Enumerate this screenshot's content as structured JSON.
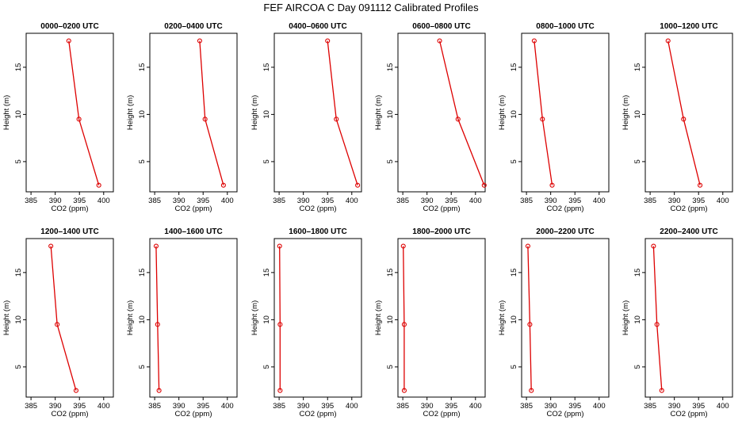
{
  "figure": {
    "title": "FEF AIRCOA C  Day 091112  Calibrated Profiles"
  },
  "chart_data": [
    {
      "type": "line",
      "title": "0000–0200 UTC",
      "xlabel": "CO2 (ppm)",
      "ylabel": "Height (m)",
      "xlim": [
        384,
        402
      ],
      "ylim": [
        1.8,
        18.6
      ],
      "x_ticks": [
        385,
        390,
        395,
        400
      ],
      "y_ticks": [
        5,
        10,
        15
      ],
      "series": [
        {
          "x": [
            392.8,
            394.9,
            399.0
          ],
          "y": [
            17.8,
            9.5,
            2.5
          ]
        }
      ]
    },
    {
      "type": "line",
      "title": "0200–0400 UTC",
      "xlabel": "CO2 (ppm)",
      "ylabel": "Height (m)",
      "xlim": [
        384,
        402
      ],
      "ylim": [
        1.8,
        18.6
      ],
      "x_ticks": [
        385,
        390,
        395,
        400
      ],
      "y_ticks": [
        5,
        10,
        15
      ],
      "series": [
        {
          "x": [
            394.3,
            395.4,
            399.2
          ],
          "y": [
            17.8,
            9.5,
            2.5
          ]
        }
      ]
    },
    {
      "type": "line",
      "title": "0400–0600 UTC",
      "xlabel": "CO2 (ppm)",
      "ylabel": "Height (m)",
      "xlim": [
        384,
        402
      ],
      "ylim": [
        1.8,
        18.6
      ],
      "x_ticks": [
        385,
        390,
        395,
        400
      ],
      "y_ticks": [
        5,
        10,
        15
      ],
      "series": [
        {
          "x": [
            395.0,
            396.8,
            401.2
          ],
          "y": [
            17.8,
            9.5,
            2.5
          ]
        }
      ]
    },
    {
      "type": "line",
      "title": "0600–0800 UTC",
      "xlabel": "CO2 (ppm)",
      "ylabel": "Height (m)",
      "xlim": [
        384,
        402
      ],
      "ylim": [
        1.8,
        18.6
      ],
      "x_ticks": [
        385,
        390,
        395,
        400
      ],
      "y_ticks": [
        5,
        10,
        15
      ],
      "series": [
        {
          "x": [
            392.6,
            396.4,
            401.8
          ],
          "y": [
            17.8,
            9.5,
            2.5
          ]
        }
      ]
    },
    {
      "type": "line",
      "title": "0800–1000 UTC",
      "xlabel": "CO2 (ppm)",
      "ylabel": "Height (m)",
      "xlim": [
        384,
        402
      ],
      "ylim": [
        1.8,
        18.6
      ],
      "x_ticks": [
        385,
        390,
        395,
        400
      ],
      "y_ticks": [
        5,
        10,
        15
      ],
      "series": [
        {
          "x": [
            386.6,
            388.3,
            390.3
          ],
          "y": [
            17.8,
            9.5,
            2.5
          ]
        }
      ]
    },
    {
      "type": "line",
      "title": "1000–1200 UTC",
      "xlabel": "CO2 (ppm)",
      "ylabel": "Height (m)",
      "xlim": [
        384,
        402
      ],
      "ylim": [
        1.8,
        18.6
      ],
      "x_ticks": [
        385,
        390,
        395,
        400
      ],
      "y_ticks": [
        5,
        10,
        15
      ],
      "series": [
        {
          "x": [
            388.7,
            391.9,
            395.3
          ],
          "y": [
            17.8,
            9.5,
            2.5
          ]
        }
      ]
    },
    {
      "type": "line",
      "title": "1200–1400 UTC",
      "xlabel": "CO2 (ppm)",
      "ylabel": "Height (m)",
      "xlim": [
        384,
        402
      ],
      "ylim": [
        1.8,
        18.6
      ],
      "x_ticks": [
        385,
        390,
        395,
        400
      ],
      "y_ticks": [
        5,
        10,
        15
      ],
      "series": [
        {
          "x": [
            389.1,
            390.4,
            394.3
          ],
          "y": [
            17.8,
            9.5,
            2.5
          ]
        }
      ]
    },
    {
      "type": "line",
      "title": "1400–1600 UTC",
      "xlabel": "CO2 (ppm)",
      "ylabel": "Height (m)",
      "xlim": [
        384,
        402
      ],
      "ylim": [
        1.8,
        18.6
      ],
      "x_ticks": [
        385,
        390,
        395,
        400
      ],
      "y_ticks": [
        5,
        10,
        15
      ],
      "series": [
        {
          "x": [
            385.3,
            385.6,
            385.9
          ],
          "y": [
            17.8,
            9.5,
            2.5
          ]
        }
      ]
    },
    {
      "type": "line",
      "title": "1600–1800 UTC",
      "xlabel": "CO2 (ppm)",
      "ylabel": "Height (m)",
      "xlim": [
        384,
        402
      ],
      "ylim": [
        1.8,
        18.6
      ],
      "x_ticks": [
        385,
        390,
        395,
        400
      ],
      "y_ticks": [
        5,
        10,
        15
      ],
      "series": [
        {
          "x": [
            385.1,
            385.2,
            385.2
          ],
          "y": [
            17.8,
            9.5,
            2.5
          ]
        }
      ]
    },
    {
      "type": "line",
      "title": "1800–2000 UTC",
      "xlabel": "CO2 (ppm)",
      "ylabel": "Height (m)",
      "xlim": [
        384,
        402
      ],
      "ylim": [
        1.8,
        18.6
      ],
      "x_ticks": [
        385,
        390,
        395,
        400
      ],
      "y_ticks": [
        5,
        10,
        15
      ],
      "series": [
        {
          "x": [
            385.1,
            385.3,
            385.3
          ],
          "y": [
            17.8,
            9.5,
            2.5
          ]
        }
      ]
    },
    {
      "type": "line",
      "title": "2000–2200 UTC",
      "xlabel": "CO2 (ppm)",
      "ylabel": "Height (m)",
      "xlim": [
        384,
        402
      ],
      "ylim": [
        1.8,
        18.6
      ],
      "x_ticks": [
        385,
        390,
        395,
        400
      ],
      "y_ticks": [
        5,
        10,
        15
      ],
      "series": [
        {
          "x": [
            385.3,
            385.7,
            386.0
          ],
          "y": [
            17.8,
            9.5,
            2.5
          ]
        }
      ]
    },
    {
      "type": "line",
      "title": "2200–2400 UTC",
      "xlabel": "CO2 (ppm)",
      "ylabel": "Height (m)",
      "xlim": [
        384,
        402
      ],
      "ylim": [
        1.8,
        18.6
      ],
      "x_ticks": [
        385,
        390,
        395,
        400
      ],
      "y_ticks": [
        5,
        10,
        15
      ],
      "series": [
        {
          "x": [
            385.7,
            386.4,
            387.4
          ],
          "y": [
            17.8,
            9.5,
            2.5
          ]
        }
      ]
    }
  ]
}
